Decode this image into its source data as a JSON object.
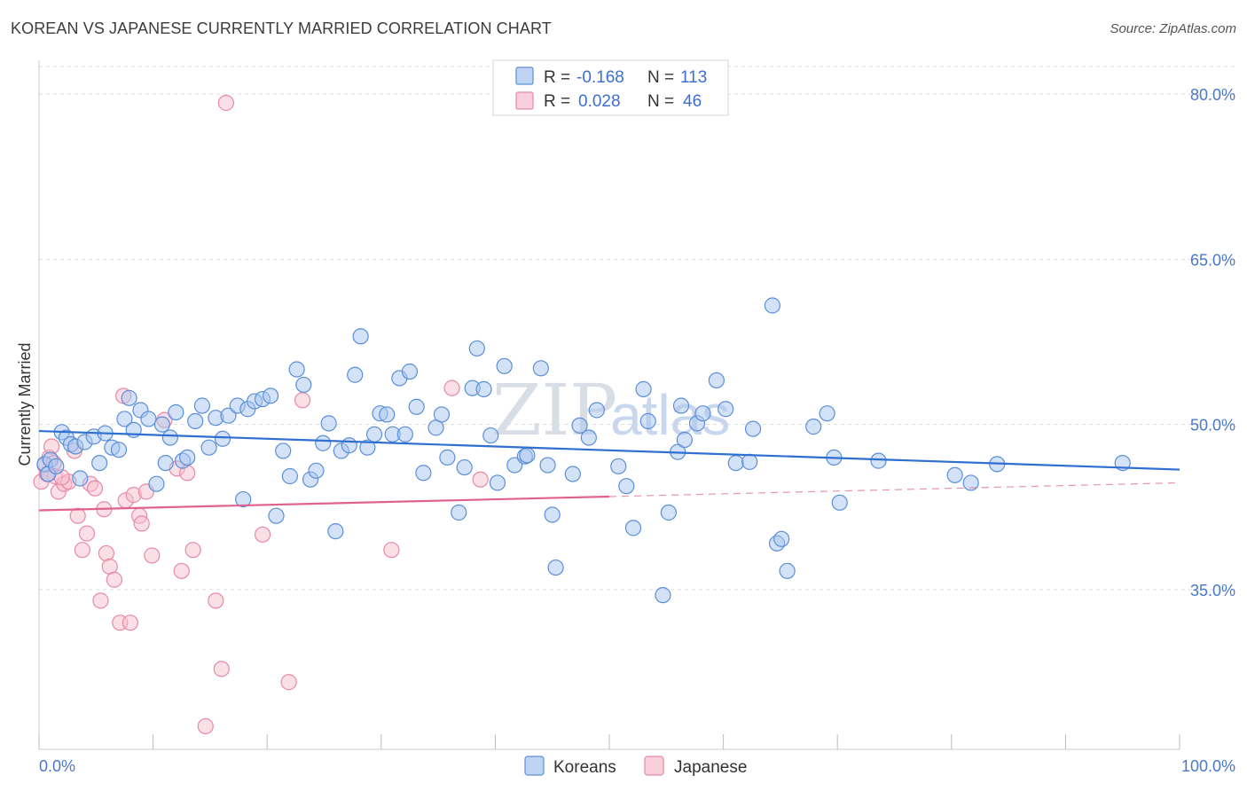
{
  "title": "KOREAN VS JAPANESE CURRENTLY MARRIED CORRELATION CHART",
  "source": "Source: ZipAtlas.com",
  "watermark": {
    "part1": "ZIP",
    "part2": "atlas"
  },
  "colors": {
    "korean_fill": "#a9c6ef",
    "korean_stroke": "#5a8fd8",
    "korean_line": "#2e6fd0",
    "japanese_fill": "#f7bfd0",
    "japanese_stroke": "#e889a6",
    "japanese_line": "#e0628f",
    "grid": "#dddddd",
    "tick_text": "#4a78c8"
  },
  "legend": {
    "rows": [
      {
        "r_label": "R =",
        "r_value": "-0.168",
        "n_label": "N =",
        "n_value": "113"
      },
      {
        "r_label": "R =",
        "r_value": "0.028",
        "n_label": "N =",
        "n_value": "46"
      }
    ]
  },
  "bottom_legend": [
    "Koreans",
    "Japanese"
  ],
  "chart_data": {
    "type": "scatter",
    "title": "KOREAN VS JAPANESE CURRENTLY MARRIED CORRELATION CHART",
    "xlabel": "",
    "ylabel": "Currently Married",
    "xlim": [
      0,
      100
    ],
    "ylim": [
      20.5,
      82.5
    ],
    "x_tick_labels": [
      "0.0%",
      "100.0%"
    ],
    "y_ticks": [
      35,
      50,
      65,
      80
    ],
    "y_tick_labels": [
      "35.0%",
      "50.0%",
      "65.0%",
      "80.0%"
    ],
    "grid": true,
    "series": [
      {
        "name": "Koreans",
        "r": -0.168,
        "n": 113,
        "trend": {
          "x0": 0,
          "y0": 49.4,
          "x1": 100,
          "y1": 45.9
        },
        "points": [
          [
            0.5,
            46.4
          ],
          [
            0.8,
            45.5
          ],
          [
            1.0,
            46.8
          ],
          [
            1.5,
            46.2
          ],
          [
            2.0,
            49.3
          ],
          [
            2.4,
            48.8
          ],
          [
            2.8,
            48.2
          ],
          [
            3.2,
            48.0
          ],
          [
            3.6,
            45.1
          ],
          [
            4.0,
            48.4
          ],
          [
            4.8,
            48.9
          ],
          [
            5.3,
            46.5
          ],
          [
            5.8,
            49.2
          ],
          [
            6.4,
            47.9
          ],
          [
            7.0,
            47.7
          ],
          [
            7.5,
            50.5
          ],
          [
            7.9,
            52.4
          ],
          [
            8.3,
            49.5
          ],
          [
            8.9,
            51.3
          ],
          [
            9.6,
            50.5
          ],
          [
            10.3,
            44.6
          ],
          [
            10.8,
            50.0
          ],
          [
            11.5,
            48.8
          ],
          [
            11.1,
            46.5
          ],
          [
            12.0,
            51.1
          ],
          [
            12.6,
            46.7
          ],
          [
            13.0,
            47.0
          ],
          [
            13.7,
            50.3
          ],
          [
            14.3,
            51.7
          ],
          [
            14.9,
            47.9
          ],
          [
            15.5,
            50.6
          ],
          [
            16.1,
            48.7
          ],
          [
            16.6,
            50.8
          ],
          [
            17.4,
            51.7
          ],
          [
            17.9,
            43.2
          ],
          [
            18.3,
            51.4
          ],
          [
            18.9,
            52.1
          ],
          [
            19.6,
            52.3
          ],
          [
            20.3,
            52.6
          ],
          [
            20.8,
            41.7
          ],
          [
            21.4,
            47.6
          ],
          [
            22.0,
            45.3
          ],
          [
            22.6,
            55.0
          ],
          [
            23.2,
            53.6
          ],
          [
            23.8,
            45.0
          ],
          [
            24.3,
            45.8
          ],
          [
            24.9,
            48.3
          ],
          [
            25.4,
            50.1
          ],
          [
            26.0,
            40.3
          ],
          [
            26.5,
            47.6
          ],
          [
            27.2,
            48.1
          ],
          [
            27.7,
            54.5
          ],
          [
            28.2,
            58.0
          ],
          [
            28.8,
            47.9
          ],
          [
            29.4,
            49.1
          ],
          [
            29.9,
            51.0
          ],
          [
            30.5,
            50.9
          ],
          [
            31.0,
            49.1
          ],
          [
            31.6,
            54.2
          ],
          [
            32.1,
            49.1
          ],
          [
            32.5,
            54.8
          ],
          [
            33.1,
            51.6
          ],
          [
            33.7,
            45.6
          ],
          [
            34.8,
            49.7
          ],
          [
            35.3,
            50.9
          ],
          [
            35.8,
            47.0
          ],
          [
            36.8,
            42.0
          ],
          [
            37.3,
            46.1
          ],
          [
            38.0,
            53.3
          ],
          [
            38.4,
            56.9
          ],
          [
            39.0,
            53.2
          ],
          [
            39.6,
            49.0
          ],
          [
            40.2,
            44.7
          ],
          [
            40.8,
            55.3
          ],
          [
            41.7,
            46.3
          ],
          [
            42.6,
            47.1
          ],
          [
            42.8,
            47.2
          ],
          [
            44.0,
            55.1
          ],
          [
            44.6,
            46.3
          ],
          [
            45.0,
            41.8
          ],
          [
            45.3,
            37.0
          ],
          [
            46.8,
            45.5
          ],
          [
            47.4,
            49.9
          ],
          [
            48.2,
            48.8
          ],
          [
            48.9,
            51.3
          ],
          [
            50.8,
            46.2
          ],
          [
            51.5,
            44.4
          ],
          [
            52.1,
            40.6
          ],
          [
            53.0,
            53.2
          ],
          [
            53.4,
            50.3
          ],
          [
            54.7,
            34.5
          ],
          [
            55.2,
            42.0
          ],
          [
            56.0,
            47.5
          ],
          [
            56.6,
            48.6
          ],
          [
            56.3,
            51.7
          ],
          [
            57.7,
            50.1
          ],
          [
            58.2,
            51.0
          ],
          [
            59.4,
            54.0
          ],
          [
            60.2,
            51.4
          ],
          [
            61.1,
            46.5
          ],
          [
            62.3,
            46.6
          ],
          [
            62.6,
            49.6
          ],
          [
            64.3,
            60.8
          ],
          [
            64.7,
            39.2
          ],
          [
            65.1,
            39.6
          ],
          [
            65.6,
            36.7
          ],
          [
            67.9,
            49.8
          ],
          [
            69.1,
            51.0
          ],
          [
            69.7,
            47.0
          ],
          [
            70.2,
            42.9
          ],
          [
            73.6,
            46.7
          ],
          [
            80.3,
            45.4
          ],
          [
            81.7,
            44.7
          ],
          [
            84.0,
            46.4
          ],
          [
            95.0,
            46.5
          ]
        ]
      },
      {
        "name": "Japanese",
        "r": 0.028,
        "n": 46,
        "trend": {
          "x0": 0,
          "y0": 42.2,
          "x1": 100,
          "y1": 44.7
        },
        "trend_solid_until_x": 50,
        "points": [
          [
            0.2,
            44.8
          ],
          [
            0.5,
            46.3
          ],
          [
            0.9,
            47.0
          ],
          [
            1.1,
            48.0
          ],
          [
            1.4,
            45.3
          ],
          [
            1.7,
            43.9
          ],
          [
            2.2,
            44.6
          ],
          [
            2.6,
            44.8
          ],
          [
            3.1,
            47.6
          ],
          [
            3.4,
            41.7
          ],
          [
            3.8,
            38.6
          ],
          [
            4.2,
            40.1
          ],
          [
            4.5,
            44.6
          ],
          [
            4.9,
            44.2
          ],
          [
            5.4,
            34.0
          ],
          [
            5.7,
            42.3
          ],
          [
            5.9,
            38.3
          ],
          [
            6.2,
            37.1
          ],
          [
            6.6,
            35.9
          ],
          [
            7.1,
            32.0
          ],
          [
            7.4,
            52.6
          ],
          [
            7.6,
            43.1
          ],
          [
            8.0,
            32.0
          ],
          [
            8.3,
            43.6
          ],
          [
            8.8,
            41.7
          ],
          [
            9.0,
            41.0
          ],
          [
            9.4,
            43.9
          ],
          [
            9.9,
            38.1
          ],
          [
            11.0,
            50.4
          ],
          [
            12.1,
            46.0
          ],
          [
            12.5,
            36.7
          ],
          [
            13.0,
            45.6
          ],
          [
            13.5,
            38.6
          ],
          [
            14.6,
            22.6
          ],
          [
            15.5,
            34.0
          ],
          [
            16.0,
            27.8
          ],
          [
            16.4,
            79.2
          ],
          [
            19.6,
            40.0
          ],
          [
            21.9,
            26.6
          ],
          [
            23.1,
            52.2
          ],
          [
            30.9,
            38.6
          ],
          [
            36.2,
            53.3
          ],
          [
            38.7,
            45.0
          ],
          [
            0.7,
            45.5
          ],
          [
            1.3,
            46.5
          ],
          [
            2.0,
            45.2
          ]
        ]
      }
    ]
  }
}
